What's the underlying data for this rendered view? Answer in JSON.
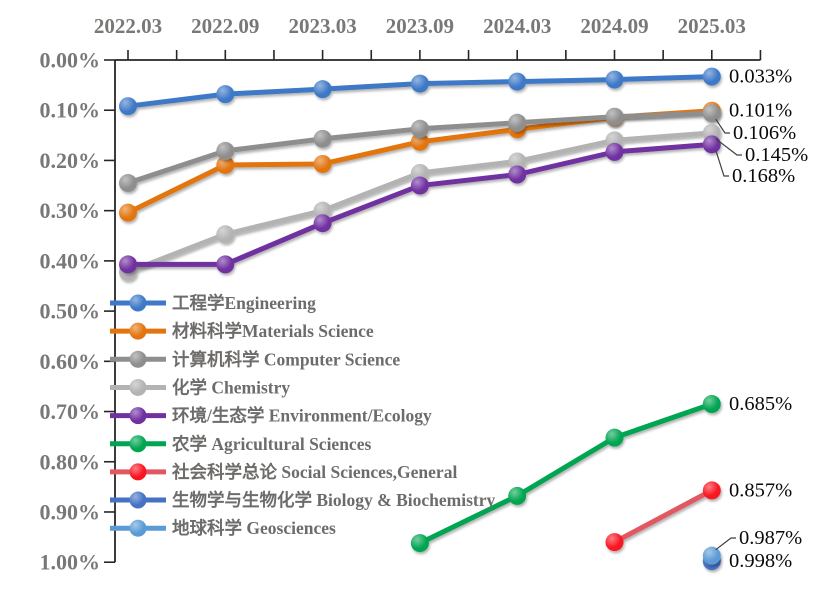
{
  "chart_data": {
    "type": "line",
    "title": "",
    "legend_position": "middle-left",
    "grid": false,
    "style": {
      "axis_color": "#262626",
      "tick_label_color": "#7A7876",
      "legend_text_color": "#6E6C6A",
      "end_label_color": "#0A0A0A",
      "background": "#ffffff"
    },
    "x_axis": {
      "position": "top",
      "categories": [
        "2022.03",
        "2022.09",
        "2023.03",
        "2023.09",
        "2024.03",
        "2024.09",
        "2025.03"
      ]
    },
    "y_axis": {
      "inverted": true,
      "min": 0.0,
      "max": 1.0,
      "unit": "%",
      "tick_labels": [
        "0.00%",
        "0.10%",
        "0.20%",
        "0.30%",
        "0.40%",
        "0.50%",
        "0.60%",
        "0.70%",
        "0.80%",
        "0.90%",
        "1.00%"
      ]
    },
    "series": [
      {
        "id": "engineering",
        "name": "工程学Engineering",
        "color": "#3E79C7",
        "values": [
          0.092,
          0.068,
          0.058,
          0.047,
          0.043,
          0.039,
          0.033
        ],
        "end_label": "0.033%",
        "leader": false
      },
      {
        "id": "materials-science",
        "name": "材料科学Materials Science",
        "color": "#E2750F",
        "values": [
          0.304,
          0.209,
          0.207,
          0.163,
          0.138,
          0.114,
          0.101
        ],
        "end_label": "0.101%",
        "leader": false
      },
      {
        "id": "computer-science",
        "name": "计算机科学 Computer Science",
        "color": "#8E8E8E",
        "values": [
          0.245,
          0.181,
          0.157,
          0.137,
          0.125,
          0.113,
          0.106
        ],
        "end_label": "0.106%",
        "leader": true
      },
      {
        "id": "chemistry",
        "name": "化学 Chemistry",
        "color": "#B3B3B3",
        "values": [
          0.422,
          0.347,
          0.3,
          0.225,
          0.202,
          0.16,
          0.145
        ],
        "end_label": "0.145%",
        "leader": true
      },
      {
        "id": "environment-ecology",
        "name": "环境/生态学 Environment/Ecology",
        "color": "#7030A0",
        "values": [
          0.407,
          0.407,
          0.325,
          0.25,
          0.228,
          0.183,
          0.168
        ],
        "end_label": "0.168%",
        "leader": true
      },
      {
        "id": "agricultural-sciences",
        "name": "农学 Agricultural Sciences",
        "color": "#00A551",
        "values": [
          null,
          null,
          null,
          0.962,
          0.868,
          0.752,
          0.685
        ],
        "end_label": "0.685%",
        "leader": false
      },
      {
        "id": "social-sciences-general",
        "name": "社会科学总论 Social Sciences,General",
        "color": "#E25862",
        "marker_color": "#FA1420",
        "values": [
          null,
          null,
          null,
          null,
          null,
          0.96,
          0.857
        ],
        "end_label": "0.857%",
        "leader": false
      },
      {
        "id": "biology-biochemistry",
        "name": "生物学与生物化学 Biology & Biochemistry",
        "color": "#4472C4",
        "values": [
          null,
          null,
          null,
          null,
          null,
          null,
          0.998
        ],
        "end_label": "0.998%",
        "leader": false
      },
      {
        "id": "geosciences",
        "name": "地球科学 Geosciences",
        "color": "#5B9BD5",
        "values": [
          null,
          null,
          null,
          null,
          null,
          null,
          0.987
        ],
        "end_label": "0.987%",
        "leader": true
      }
    ]
  }
}
